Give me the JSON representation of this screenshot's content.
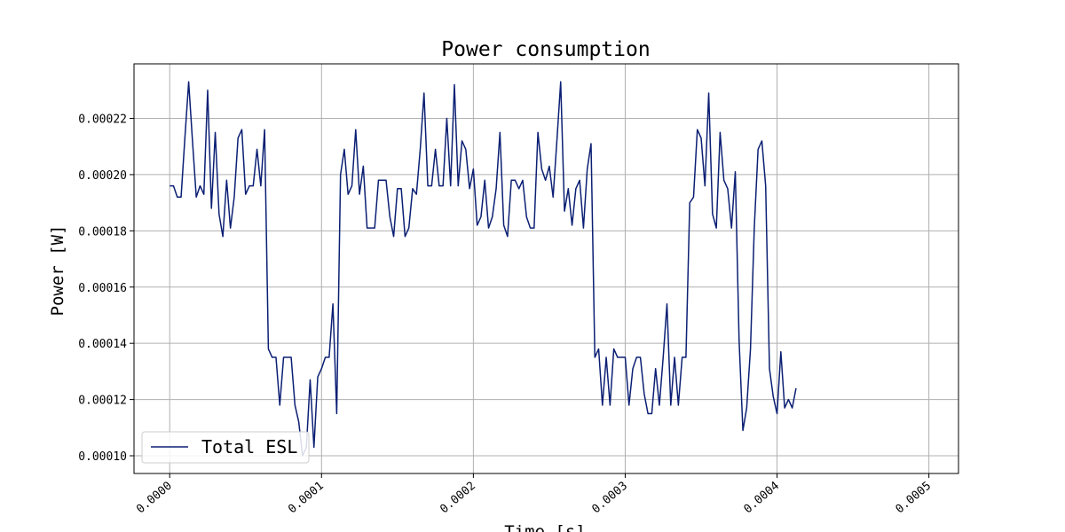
{
  "chart_data": {
    "type": "line",
    "title": "Power consumption",
    "xlabel": "Time [s]",
    "ylabel": "Power [W]",
    "xlim": [
      -2.35e-05,
      0.0005195
    ],
    "ylim": [
      9.37e-05,
      0.0002394
    ],
    "x_ticks": [
      0.0,
      0.0001,
      0.0002,
      0.0003,
      0.0004,
      0.0005
    ],
    "x_tick_labels": [
      "0.0000",
      "0.0001",
      "0.0002",
      "0.0003",
      "0.0004",
      "0.0005"
    ],
    "y_ticks": [
      0.0001,
      0.00012,
      0.00014,
      0.00016,
      0.00018,
      0.0002,
      0.00022
    ],
    "y_tick_labels": [
      "0.00010",
      "0.00012",
      "0.00014",
      "0.00016",
      "0.00018",
      "0.00020",
      "0.00022"
    ],
    "grid": true,
    "legend_position": "lower-left",
    "series": [
      {
        "name": "Total ESL",
        "color": "#0b1f73",
        "x_start": 0.0,
        "x_step": 2.5e-06,
        "values": [
          0.000196,
          0.000196,
          0.000192,
          0.000192,
          0.000213,
          0.000233,
          0.000212,
          0.000192,
          0.000196,
          0.000193,
          0.00023,
          0.000188,
          0.000215,
          0.000186,
          0.000178,
          0.000198,
          0.000181,
          0.000192,
          0.000213,
          0.000216,
          0.000193,
          0.000196,
          0.000196,
          0.000209,
          0.000196,
          0.000216,
          0.000138,
          0.000135,
          0.000135,
          0.000118,
          0.000135,
          0.000135,
          0.000135,
          0.000118,
          0.000112,
          0.0001,
          0.000103,
          0.000127,
          0.000103,
          0.000128,
          0.000131,
          0.000135,
          0.000135,
          0.000154,
          0.000115,
          0.0002,
          0.000209,
          0.000193,
          0.000196,
          0.000216,
          0.000193,
          0.000203,
          0.000181,
          0.000181,
          0.000181,
          0.000198,
          0.000198,
          0.000198,
          0.000185,
          0.000178,
          0.000195,
          0.000195,
          0.000178,
          0.000181,
          0.000195,
          0.000193,
          0.000209,
          0.000229,
          0.000196,
          0.000196,
          0.000209,
          0.000196,
          0.000196,
          0.00022,
          0.000196,
          0.000232,
          0.000196,
          0.000212,
          0.000209,
          0.000195,
          0.000202,
          0.000182,
          0.000185,
          0.000198,
          0.000181,
          0.000185,
          0.000195,
          0.000215,
          0.000182,
          0.000178,
          0.000198,
          0.000198,
          0.000195,
          0.000198,
          0.000185,
          0.000181,
          0.000181,
          0.000215,
          0.000202,
          0.000198,
          0.000203,
          0.000192,
          0.000212,
          0.000233,
          0.000187,
          0.000195,
          0.000182,
          0.000195,
          0.000198,
          0.000181,
          0.000202,
          0.000211,
          0.000135,
          0.000138,
          0.000118,
          0.000135,
          0.000118,
          0.000138,
          0.000135,
          0.000135,
          0.000135,
          0.000118,
          0.000131,
          0.000135,
          0.000135,
          0.000122,
          0.000115,
          0.000115,
          0.000131,
          0.000118,
          0.000135,
          0.000154,
          0.000118,
          0.000135,
          0.000118,
          0.000135,
          0.000135,
          0.00019,
          0.000192,
          0.000216,
          0.000213,
          0.000196,
          0.000229,
          0.000186,
          0.000181,
          0.000215,
          0.000198,
          0.000195,
          0.000181,
          0.000201,
          0.000141,
          0.000109,
          0.000117,
          0.000138,
          0.000181,
          0.000209,
          0.000212,
          0.000196,
          0.000131,
          0.000121,
          0.000115,
          0.000137,
          0.000117,
          0.00012,
          0.000117,
          0.000124
        ]
      }
    ]
  }
}
